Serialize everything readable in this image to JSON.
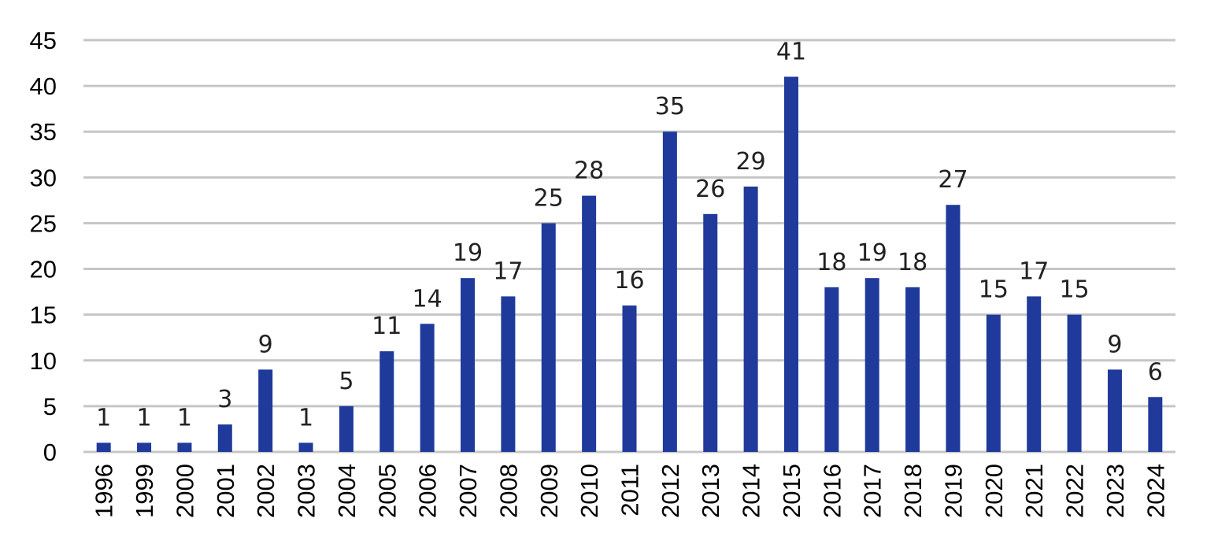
{
  "chart_data": {
    "type": "bar",
    "title": "",
    "xlabel": "",
    "ylabel": "",
    "categories": [
      "1996",
      "1999",
      "2000",
      "2001",
      "2002",
      "2003",
      "2004",
      "2005",
      "2006",
      "2007",
      "2008",
      "2009",
      "2010",
      "2011",
      "2012",
      "2013",
      "2014",
      "2015",
      "2016",
      "2017",
      "2018",
      "2019",
      "2020",
      "2021",
      "2022",
      "2023",
      "2024"
    ],
    "values": [
      1,
      1,
      1,
      3,
      9,
      1,
      5,
      11,
      14,
      19,
      17,
      25,
      28,
      16,
      35,
      26,
      29,
      41,
      18,
      19,
      18,
      27,
      15,
      17,
      15,
      9,
      6
    ],
    "ylim": [
      0,
      45
    ],
    "yticks": [
      0,
      5,
      10,
      15,
      20,
      25,
      30,
      35,
      40,
      45
    ],
    "grid": true,
    "legend": "none",
    "data_labels": true,
    "bar_color": "#1f3a9a"
  }
}
